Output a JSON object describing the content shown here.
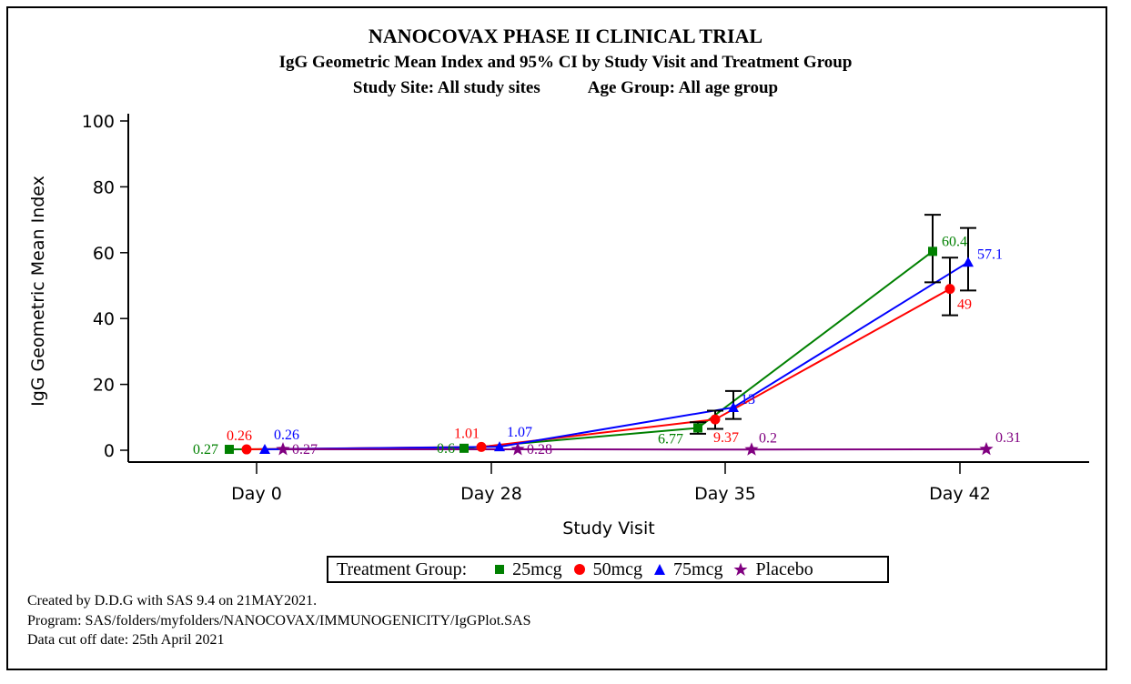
{
  "titles": {
    "main": "NANOCOVAX PHASE II CLINICAL TRIAL",
    "subtitle": "IgG Geometric Mean Index and 95% CI by Study Visit and Treatment Group",
    "site": "Study Site: All study sites",
    "age": "Age Group: All age group"
  },
  "legend": {
    "title": "Treatment Group:",
    "items": [
      {
        "label": "25mcg",
        "color": "#008000",
        "marker": "square"
      },
      {
        "label": "50mcg",
        "color": "#ff0000",
        "marker": "circle"
      },
      {
        "label": "75mcg",
        "color": "#0000ff",
        "marker": "triangle"
      },
      {
        "label": "Placebo",
        "color": "#800080",
        "marker": "star"
      }
    ]
  },
  "footnotes": [
    "Created by D.D.G with SAS 9.4 on 21MAY2021.",
    "Program: SAS/folders/myfolders/NANOCOVAX/IMMUNOGENICITY/IgGPlot.SAS",
    "Data cut off date: 25th April 2021"
  ],
  "chart_data": {
    "type": "line",
    "title": "NANOCOVAX PHASE II CLINICAL TRIAL",
    "xlabel": "Study Visit",
    "ylabel": "IgG Geometric Mean Index",
    "categories": [
      "Day 0",
      "Day 28",
      "Day 35",
      "Day 42"
    ],
    "ylim": [
      0,
      100
    ],
    "yticks": [
      0,
      20,
      40,
      60,
      80,
      100
    ],
    "grid": false,
    "legend_position": "bottom",
    "series": [
      {
        "name": "25mcg",
        "color": "#008000",
        "marker": "square",
        "values": [
          0.27,
          0.6,
          6.77,
          60.4
        ],
        "labels": [
          "0.27",
          "0.6",
          "6.77",
          "60.4"
        ],
        "ci_lower": [
          null,
          null,
          5.0,
          51.0
        ],
        "ci_upper": [
          null,
          null,
          8.5,
          71.5
        ]
      },
      {
        "name": "50mcg",
        "color": "#ff0000",
        "marker": "circle",
        "values": [
          0.26,
          1.01,
          9.37,
          49
        ],
        "labels": [
          "0.26",
          "1.01",
          "9.37",
          "49"
        ],
        "ci_lower": [
          null,
          null,
          6.5,
          41.0
        ],
        "ci_upper": [
          null,
          null,
          12.0,
          58.5
        ]
      },
      {
        "name": "75mcg",
        "color": "#0000ff",
        "marker": "triangle",
        "values": [
          0.26,
          1.07,
          13,
          57.1
        ],
        "labels": [
          "0.26",
          "1.07",
          "13",
          "57.1"
        ],
        "ci_lower": [
          null,
          null,
          9.5,
          48.5
        ],
        "ci_upper": [
          null,
          null,
          18.0,
          67.5
        ]
      },
      {
        "name": "Placebo",
        "color": "#800080",
        "marker": "star",
        "values": [
          0.27,
          0.28,
          0.2,
          0.31
        ],
        "labels": [
          "0.27",
          "0.28",
          "0.2",
          "0.31"
        ],
        "ci_lower": [
          null,
          null,
          null,
          null
        ],
        "ci_upper": [
          null,
          null,
          null,
          null
        ]
      }
    ]
  }
}
